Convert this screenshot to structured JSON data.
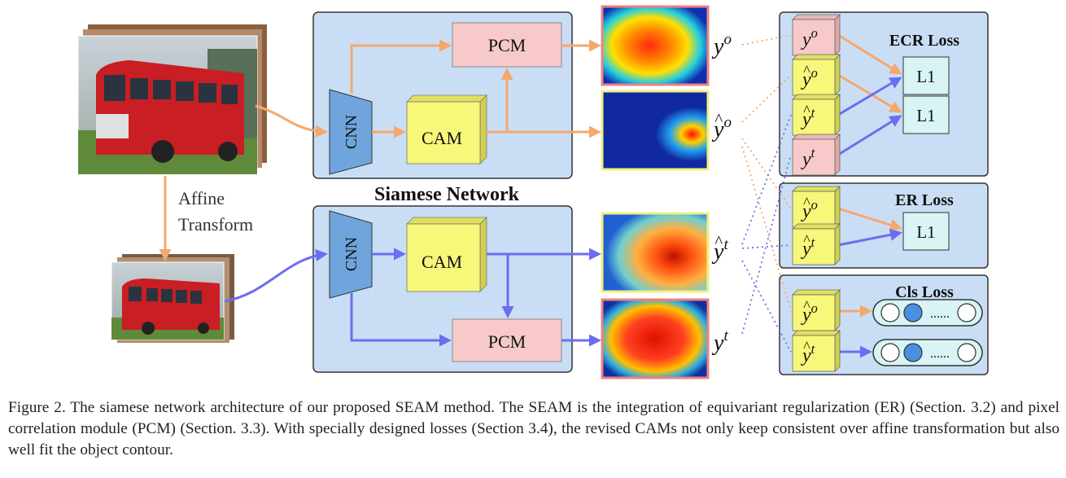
{
  "diagram": {
    "siamese_title": "Siamese Network",
    "affine_label_line1": "Affine",
    "affine_label_line2": "Transform",
    "upper_branch": {
      "cnn": "CNN",
      "cam": "CAM",
      "pcm": "PCM"
    },
    "lower_branch": {
      "cnn": "CNN",
      "cam": "CAM",
      "pcm": "PCM"
    },
    "outputs": {
      "top_pcm": {
        "base": "y",
        "sup": "o",
        "hat": false
      },
      "top_cam": {
        "base": "y",
        "sup": "o",
        "hat": true
      },
      "bottom_cam": {
        "base": "y",
        "sup": "t",
        "hat": true
      },
      "bottom_pcm": {
        "base": "y",
        "sup": "t",
        "hat": false
      }
    },
    "ecr_loss": {
      "title": "ECR Loss",
      "l1_top": "L1",
      "l1_bottom": "L1",
      "inputs": [
        {
          "base": "y",
          "sup": "o",
          "hat": false
        },
        {
          "base": "y",
          "sup": "o",
          "hat": true
        },
        {
          "base": "y",
          "sup": "t",
          "hat": true
        },
        {
          "base": "y",
          "sup": "t",
          "hat": false
        }
      ]
    },
    "er_loss": {
      "title": "ER Loss",
      "l1": "L1",
      "inputs": [
        {
          "base": "y",
          "sup": "o",
          "hat": true
        },
        {
          "base": "y",
          "sup": "t",
          "hat": true
        }
      ]
    },
    "cls_loss": {
      "title": "Cls Loss",
      "dots": "......",
      "inputs": [
        {
          "base": "y",
          "sup": "o",
          "hat": true
        },
        {
          "base": "y",
          "sup": "t",
          "hat": true
        }
      ]
    },
    "colors": {
      "orange": "#f5a86c",
      "blue": "#6b6ef0",
      "panel_fill": "#c9def5",
      "pcm_fill": "#f7c9c9",
      "cam_fill": "#f7f77a",
      "cnn_fill": "#6fa5dc"
    }
  },
  "caption": {
    "text": "Figure 2. The siamese network architecture of our proposed SEAM method. The SEAM is the integration of equivariant regularization (ER) (Section. 3.2) and pixel correlation module (PCM) (Section. 3.3). With specially designed losses (Section 3.4), the revised CAMs not only keep consistent over affine transformation but also well fit the object contour."
  }
}
